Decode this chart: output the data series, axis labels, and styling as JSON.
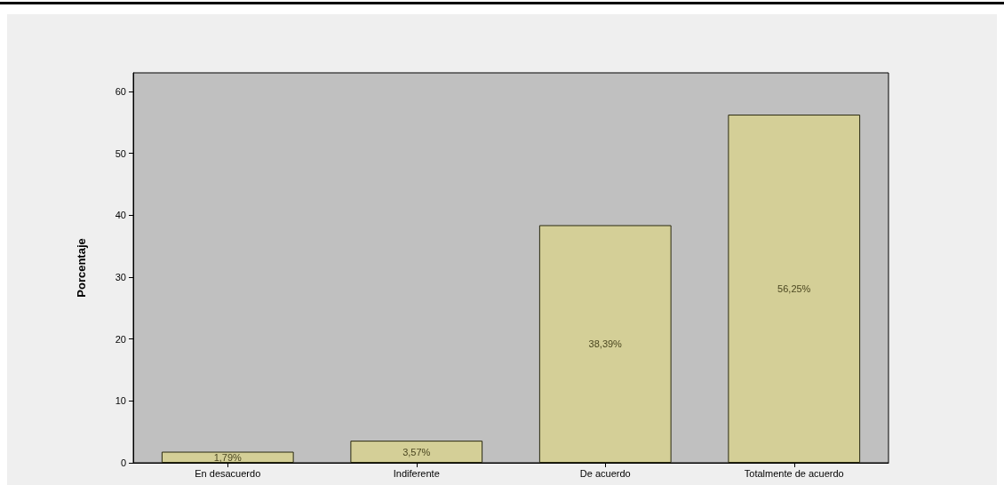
{
  "chart_data": {
    "type": "bar",
    "ylabel": "Porcentaje",
    "categories": [
      "En desacuerdo",
      "Indiferente",
      "De acuerdo",
      "Totalmente de acuerdo"
    ],
    "values": [
      1.79,
      3.57,
      38.39,
      56.25
    ],
    "color": "#d4cf97",
    "value_labels": [
      "1,79%",
      "3,57%",
      "38,39%",
      "56,25%"
    ],
    "ylim": [
      0,
      63
    ],
    "yticks": [
      0,
      10,
      20,
      30,
      40,
      50,
      60
    ],
    "grid": false
  }
}
